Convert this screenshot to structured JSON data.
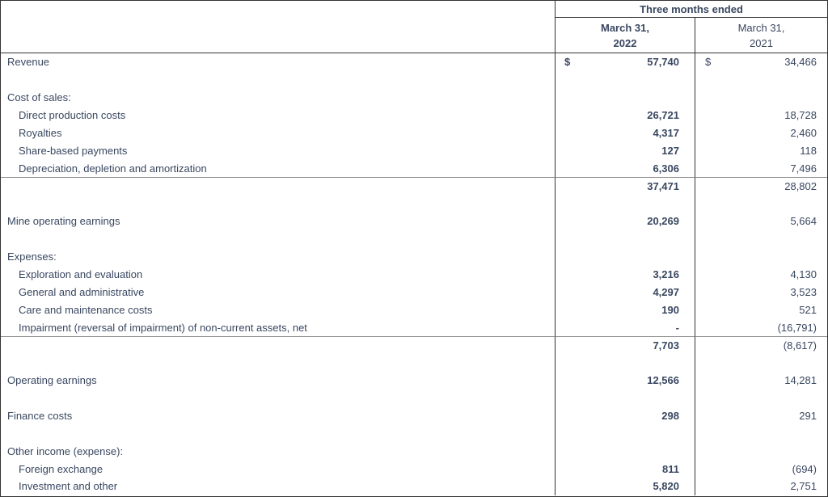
{
  "colors": {
    "text": "#394760",
    "border_dark": "#333333",
    "subtotal_rule_gray": "#8f8f8f",
    "background": "#ffffff"
  },
  "table": {
    "header": {
      "group_label": "Three months ended",
      "columns": [
        {
          "line1": "March 31,",
          "line2": "2022",
          "bold": true
        },
        {
          "line1": "March 31,",
          "line2": "2021",
          "bold": false
        }
      ]
    },
    "currency_symbol": "$",
    "rows": [
      {
        "label": "Revenue",
        "indent": 0,
        "cur": true,
        "v2022": "57,740",
        "v2021": "34,466"
      },
      {
        "blank": true
      },
      {
        "label": "Cost of sales:",
        "indent": 0
      },
      {
        "label": "Direct production costs",
        "indent": 1,
        "v2022": "26,721",
        "v2021": "18,728"
      },
      {
        "label": "Royalties",
        "indent": 1,
        "v2022": "4,317",
        "v2021": "2,460"
      },
      {
        "label": "Share-based payments",
        "indent": 1,
        "v2022": "127",
        "v2021": "118"
      },
      {
        "label": "Depreciation, depletion and amortization",
        "indent": 1,
        "v2022": "6,306",
        "v2021": "7,496"
      },
      {
        "rule": true,
        "v2022": "37,471",
        "v2021": "28,802"
      },
      {
        "blank": true
      },
      {
        "label": "Mine operating earnings",
        "indent": 0,
        "v2022": "20,269",
        "v2021": "5,664"
      },
      {
        "blank": true
      },
      {
        "label": "Expenses:",
        "indent": 0
      },
      {
        "label": "Exploration and evaluation",
        "indent": 1,
        "v2022": "3,216",
        "v2021": "4,130"
      },
      {
        "label": "General and administrative",
        "indent": 1,
        "v2022": "4,297",
        "v2021": "3,523"
      },
      {
        "label": "Care and maintenance costs",
        "indent": 1,
        "v2022": "190",
        "v2021": "521"
      },
      {
        "label": "Impairment (reversal of impairment) of non-current assets, net",
        "indent": 1,
        "v2022": "-",
        "v2021": "(16,791)"
      },
      {
        "rule": true,
        "v2022": "7,703",
        "v2021": "(8,617)"
      },
      {
        "blank": true
      },
      {
        "label": "Operating earnings",
        "indent": 0,
        "v2022": "12,566",
        "v2021": "14,281"
      },
      {
        "blank": true
      },
      {
        "label": "Finance costs",
        "indent": 0,
        "v2022": "298",
        "v2021": "291"
      },
      {
        "blank": true
      },
      {
        "label": "Other income (expense):",
        "indent": 0
      },
      {
        "label": "Foreign exchange",
        "indent": 1,
        "v2022": "811",
        "v2021": "(694)"
      },
      {
        "label": "Investment and other",
        "indent": 1,
        "v2022": "5,820",
        "v2021": "2,751"
      }
    ]
  }
}
